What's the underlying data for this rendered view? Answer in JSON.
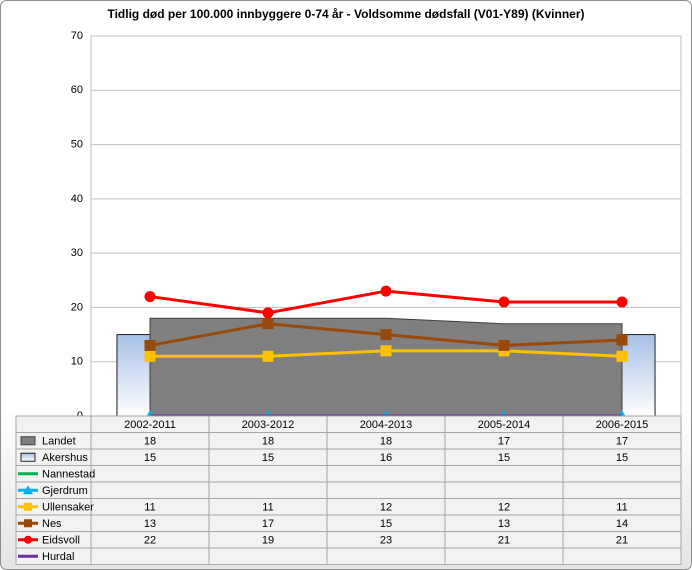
{
  "chart_data": {
    "type": "combo",
    "title": "Tidlig død per 100.000 innbyggere 0-74 år - Voldsomme dødsfall (V01-Y89) (Kvinner)",
    "categories": [
      "2002-2011",
      "2003-2012",
      "2004-2013",
      "2005-2014",
      "2006-2015"
    ],
    "ylim": [
      0,
      70
    ],
    "yticks": [
      0,
      10,
      20,
      30,
      40,
      50,
      60,
      70
    ],
    "grid": true,
    "legend": "table",
    "series": [
      {
        "name": "Landet",
        "kind": "area",
        "color": "#7f7f7f",
        "values": [
          18,
          18,
          18,
          17,
          17
        ]
      },
      {
        "name": "Akershus",
        "kind": "bar",
        "color": "#c6d9f1",
        "values": [
          15,
          15,
          16,
          15,
          15
        ]
      },
      {
        "name": "Nannestad",
        "kind": "line",
        "color": "#00b050",
        "values": [
          null,
          null,
          null,
          null,
          null
        ]
      },
      {
        "name": "Gjerdrum",
        "kind": "line",
        "marker": "triangle",
        "color": "#00b0f0",
        "values": [
          0,
          0,
          0,
          0,
          0
        ],
        "show_values": false
      },
      {
        "name": "Ullensaker",
        "kind": "line",
        "marker": "square",
        "color": "#ffc000",
        "values": [
          11,
          11,
          12,
          12,
          11
        ]
      },
      {
        "name": "Nes",
        "kind": "line",
        "marker": "square",
        "color": "#984807",
        "values": [
          13,
          17,
          15,
          13,
          14
        ]
      },
      {
        "name": "Eidsvoll",
        "kind": "line",
        "marker": "circle",
        "color": "#ff0000",
        "values": [
          22,
          19,
          23,
          21,
          21
        ]
      },
      {
        "name": "Hurdal",
        "kind": "line",
        "color": "#7030a0",
        "values": [
          0,
          0,
          0,
          0,
          0
        ],
        "show_values": false
      }
    ]
  }
}
